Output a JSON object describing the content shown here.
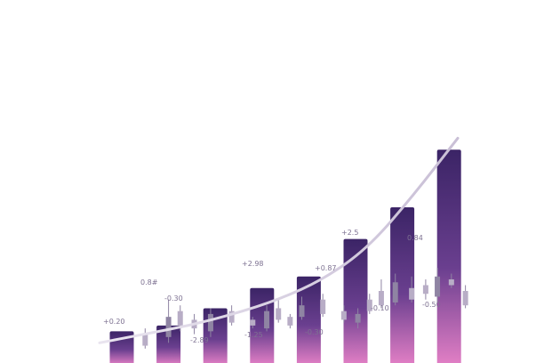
{
  "colors": {
    "bar_top": "#3b2466",
    "bar_mid": "#6a3f8f",
    "bar_bottom": "#e27fc5",
    "candle": "#b8adc6",
    "candle_dark": "#8f84a3",
    "trend": "#c9bfd6",
    "label": "#7e7292"
  },
  "chart_data": {
    "type": "bar",
    "title": "",
    "xlabel": "",
    "ylabel": "",
    "grid": false,
    "legend": "none",
    "ylim": [
      0,
      100
    ],
    "bars": [
      11,
      13,
      19,
      26,
      30,
      43,
      54,
      74
    ],
    "trend_line": [
      7,
      10,
      13,
      17,
      22,
      29,
      40,
      58,
      78
    ],
    "labels": [
      "+0.20",
      "0.8#",
      "-0.30",
      "-2.89",
      "+2.98",
      "-1.25",
      "+0.87",
      "-0.30",
      "+2.5",
      "-0.10",
      "0.84",
      "-0.50"
    ],
    "candles": [
      {
        "x": 0.5,
        "o": 6,
        "c": 10,
        "lo": 5,
        "hi": 12
      },
      {
        "x": 1.0,
        "o": 9,
        "c": 16,
        "lo": 7,
        "hi": 22
      },
      {
        "x": 1.25,
        "o": 13,
        "c": 18,
        "lo": 11,
        "hi": 20
      },
      {
        "x": 1.55,
        "o": 12,
        "c": 15,
        "lo": 10,
        "hi": 17
      },
      {
        "x": 1.9,
        "o": 11,
        "c": 17,
        "lo": 9,
        "hi": 19
      },
      {
        "x": 2.35,
        "o": 14,
        "c": 18,
        "lo": 13,
        "hi": 20
      },
      {
        "x": 2.8,
        "o": 13,
        "c": 15,
        "lo": 12,
        "hi": 16
      },
      {
        "x": 3.1,
        "o": 12,
        "c": 18,
        "lo": 11,
        "hi": 20
      },
      {
        "x": 3.35,
        "o": 15,
        "c": 19,
        "lo": 14,
        "hi": 22
      },
      {
        "x": 3.6,
        "o": 13,
        "c": 16,
        "lo": 12,
        "hi": 17
      },
      {
        "x": 3.85,
        "o": 16,
        "c": 20,
        "lo": 15,
        "hi": 23
      },
      {
        "x": 4.3,
        "o": 17,
        "c": 22,
        "lo": 16,
        "hi": 24
      },
      {
        "x": 4.75,
        "o": 15,
        "c": 18,
        "lo": 14,
        "hi": 20
      },
      {
        "x": 5.05,
        "o": 14,
        "c": 17,
        "lo": 12,
        "hi": 19
      },
      {
        "x": 5.3,
        "o": 18,
        "c": 22,
        "lo": 17,
        "hi": 24
      },
      {
        "x": 5.55,
        "o": 20,
        "c": 25,
        "lo": 19,
        "hi": 29
      },
      {
        "x": 5.85,
        "o": 21,
        "c": 28,
        "lo": 20,
        "hi": 31
      },
      {
        "x": 6.2,
        "o": 22,
        "c": 26,
        "lo": 21,
        "hi": 30
      },
      {
        "x": 6.5,
        "o": 24,
        "c": 27,
        "lo": 22,
        "hi": 29
      },
      {
        "x": 6.75,
        "o": 23,
        "c": 30,
        "lo": 21,
        "hi": 33
      },
      {
        "x": 7.05,
        "o": 27,
        "c": 29,
        "lo": 26,
        "hi": 31
      },
      {
        "x": 7.35,
        "o": 20,
        "c": 25,
        "lo": 19,
        "hi": 27
      }
    ]
  }
}
